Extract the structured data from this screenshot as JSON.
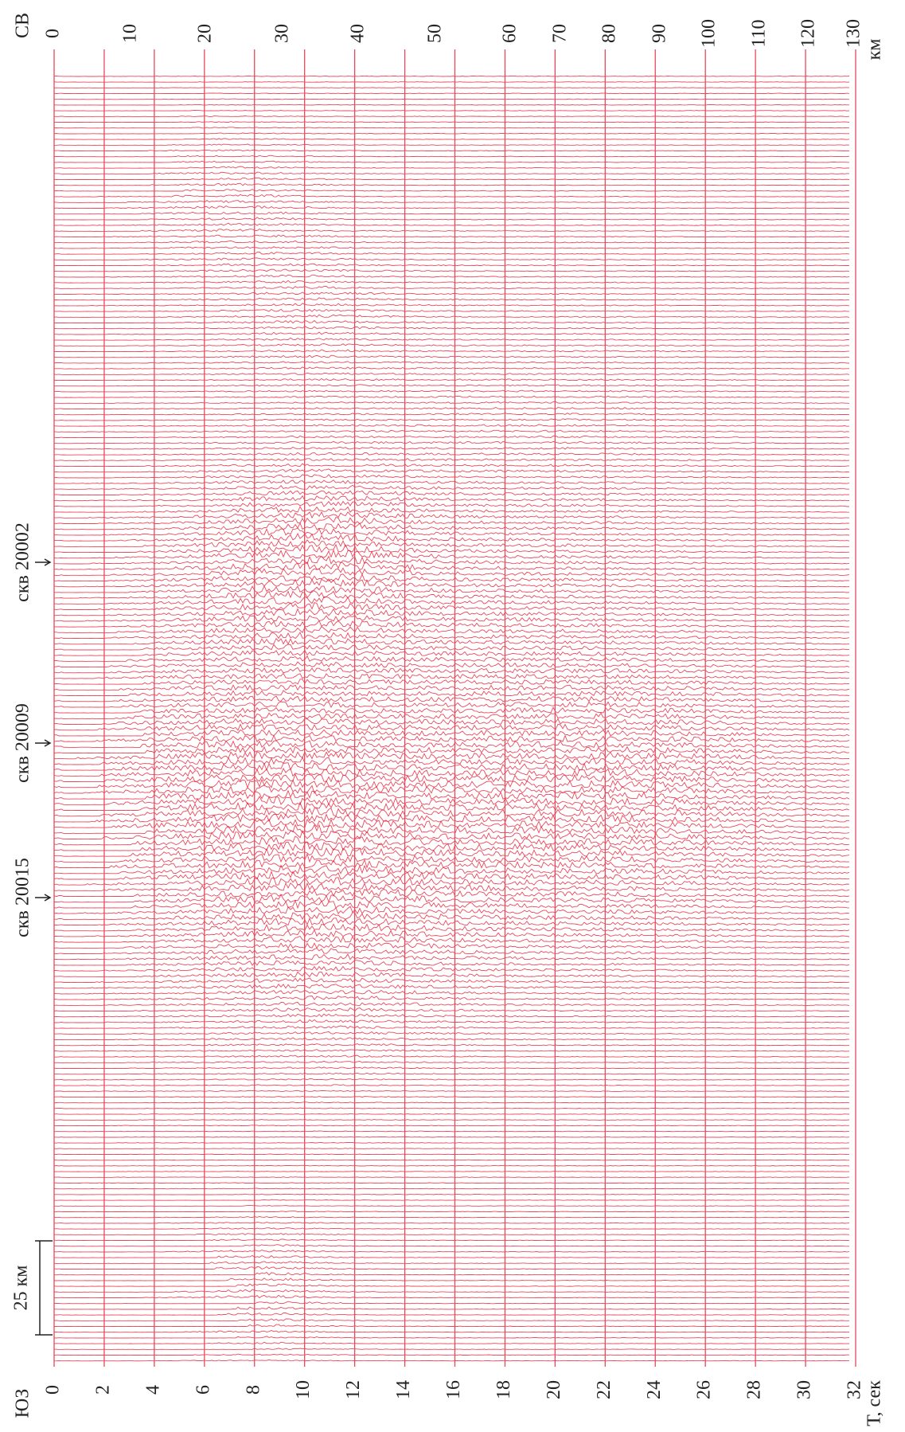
{
  "header": {
    "left": "ЮЗ",
    "right": "СВ"
  },
  "time_axis": {
    "ticks": [
      0,
      2,
      4,
      6,
      8,
      10,
      12,
      14,
      16,
      18,
      20,
      22,
      24,
      26,
      28,
      30,
      32
    ],
    "label": "Т, сек"
  },
  "depth_axis": {
    "ticks": [
      0,
      10,
      20,
      30,
      40,
      50,
      60,
      70,
      80,
      90,
      100,
      110,
      120,
      130
    ],
    "unit": "км"
  },
  "wells": [
    "скв 20002",
    "скв 20009",
    "скв 20015"
  ],
  "scale_bar": "25 км"
}
